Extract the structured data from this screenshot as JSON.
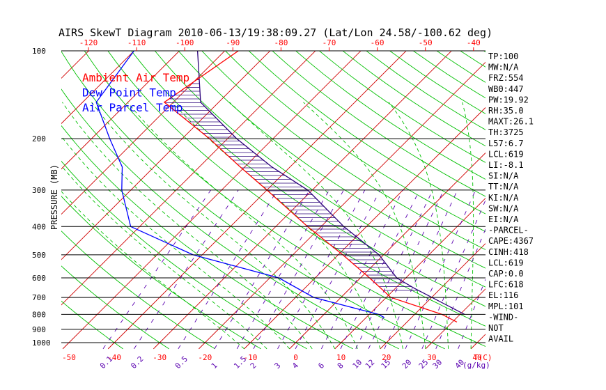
{
  "chart_data": {
    "type": "skewt",
    "title": "AIRS SkewT Diagram 2010-06-13/19:38:09.27 (Lat/Lon 24.58/-100.62 deg)",
    "ylabel": "PRESSURE (MB)",
    "xlabel_bottom_unit": "T(C)",
    "mixing_ratio_unit": "(g/kg)",
    "pressure_ticks": [
      100,
      200,
      300,
      400,
      500,
      600,
      700,
      800,
      900,
      1000
    ],
    "temp_ticks_top": [
      -120,
      -110,
      -100,
      -90,
      -80,
      -70,
      -60,
      -50,
      -40
    ],
    "temp_ticks_bottom": [
      -50,
      -40,
      -30,
      -20,
      -10,
      0,
      10,
      20,
      30,
      40
    ],
    "mixing_ratio_ticks": [
      "0.1",
      "0.2",
      "0.5",
      "1",
      "1.5",
      "2",
      "3",
      "4",
      "6",
      "8",
      "10",
      "12",
      "15",
      "20",
      "25",
      "30",
      "40"
    ],
    "legend": [
      {
        "label": "Ambient Air Temp",
        "color": "#ff0000"
      },
      {
        "label": "Dew Point Temp",
        "color": "#0000ff"
      },
      {
        "label": "Air Parcel Temp",
        "color": "#0000ff"
      }
    ],
    "colors": {
      "ambient": "#ff0000",
      "dewpoint": "#0000ff",
      "parcel": "#2a007a",
      "isotherm": "#d00000",
      "dry_adiabat": "#00c000",
      "moist_adiabat": "#00c000",
      "mixing_ratio": "#5a00b0",
      "isobar": "#000000",
      "hatch": "#2a007a",
      "top_axis": "#ff0000",
      "bottom_axis": "#ff0000",
      "mixing_labels": "#5a00b0"
    },
    "ambient_temp": [
      {
        "p": 100,
        "t": -77
      },
      {
        "p": 150,
        "t": -82
      },
      {
        "p": 200,
        "t": -64
      },
      {
        "p": 250,
        "t": -51
      },
      {
        "p": 300,
        "t": -40
      },
      {
        "p": 400,
        "t": -23
      },
      {
        "p": 500,
        "t": -9
      },
      {
        "p": 600,
        "t": 2
      },
      {
        "p": 700,
        "t": 11
      },
      {
        "p": 800,
        "t": 26
      },
      {
        "p": 850,
        "t": 31
      }
    ],
    "dewpoint_temp": [
      {
        "p": 100,
        "t": -100
      },
      {
        "p": 150,
        "t": -97
      },
      {
        "p": 200,
        "t": -86
      },
      {
        "p": 250,
        "t": -77
      },
      {
        "p": 300,
        "t": -72
      },
      {
        "p": 400,
        "t": -62
      },
      {
        "p": 500,
        "t": -42
      },
      {
        "p": 600,
        "t": -18
      },
      {
        "p": 700,
        "t": -6
      },
      {
        "p": 800,
        "t": 12
      },
      {
        "p": 820,
        "t": 14
      }
    ],
    "parcel_temp": [
      {
        "p": 100,
        "t": -86
      },
      {
        "p": 150,
        "t": -74
      },
      {
        "p": 200,
        "t": -58
      },
      {
        "p": 250,
        "t": -44
      },
      {
        "p": 300,
        "t": -31
      },
      {
        "p": 400,
        "t": -15
      },
      {
        "p": 500,
        "t": -1
      },
      {
        "p": 600,
        "t": 8
      },
      {
        "p": 650,
        "t": 14
      },
      {
        "p": 800,
        "t": 31
      }
    ],
    "indices": [
      "TP:100",
      "MW:N/A",
      "FRZ:554",
      "WB0:447",
      "PW:19.92",
      "RH:35.0",
      "MAXT:26.1",
      "TH:3725",
      "L57:6.7",
      "LCL:619",
      "LI:-8.1",
      "SI:N/A",
      "TT:N/A",
      "KI:N/A",
      "SW:N/A",
      "EI:N/A",
      "-PARCEL-",
      "CAPE:4367",
      "CINH:418",
      "LCL:619",
      "CAP:0.0",
      "LFC:618",
      "EL:116",
      "MPL:101",
      "-WIND-",
      "NOT",
      "AVAIL"
    ]
  }
}
